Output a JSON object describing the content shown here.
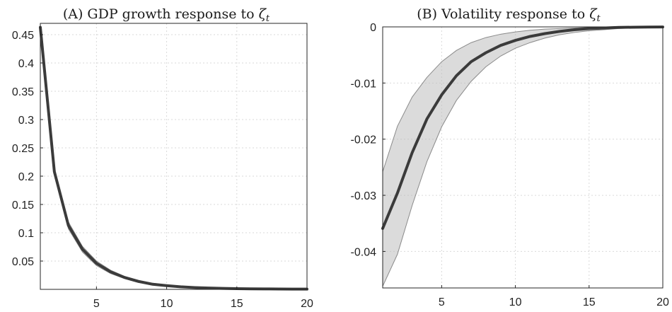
{
  "chart_data": [
    {
      "type": "line",
      "title_prefix": "(A) GDP growth response to ",
      "title_symbol": "ζ",
      "title_subscript": "t",
      "xlabel": "",
      "ylabel": "",
      "xlim": [
        1,
        20
      ],
      "ylim": [
        0,
        0.47
      ],
      "xticks": [
        "5",
        "10",
        "15",
        "20"
      ],
      "xtick_values": [
        5,
        10,
        15,
        20
      ],
      "yticks": [
        "0.05",
        "0.1",
        "0.15",
        "0.2",
        "0.25",
        "0.3",
        "0.35",
        "0.4",
        "0.45"
      ],
      "ytick_values": [
        0.05,
        0.1,
        0.15,
        0.2,
        0.25,
        0.3,
        0.35,
        0.4,
        0.45
      ],
      "grid": true,
      "x": [
        1,
        2,
        3,
        4,
        5,
        6,
        7,
        8,
        9,
        10,
        11,
        12,
        13,
        14,
        15,
        16,
        17,
        18,
        19,
        20
      ],
      "series": [
        {
          "values": [
            0.463,
            0.208,
            0.113,
            0.071,
            0.046,
            0.031,
            0.021,
            0.014,
            0.009,
            0.0065,
            0.0045,
            0.0032,
            0.0023,
            0.0017,
            0.0013,
            0.001,
            0.0008,
            0.0006,
            0.0005,
            0.0004
          ]
        }
      ],
      "band_upper": [
        0.466,
        0.214,
        0.119,
        0.076,
        0.05,
        0.034,
        0.023,
        0.016,
        0.011,
        0.0078,
        0.0055,
        0.004,
        0.0029,
        0.0021,
        0.0016,
        0.0013,
        0.001,
        0.0008,
        0.0006,
        0.0005
      ],
      "band_lower": [
        0.46,
        0.202,
        0.107,
        0.066,
        0.042,
        0.028,
        0.019,
        0.012,
        0.008,
        0.0055,
        0.0038,
        0.0026,
        0.0019,
        0.0014,
        0.001,
        0.0008,
        0.0006,
        0.0005,
        0.0004,
        0.0003
      ]
    },
    {
      "type": "line",
      "title_prefix": "(B) Volatility response to ",
      "title_symbol": "ζ",
      "title_subscript": "t",
      "xlabel": "",
      "ylabel": "",
      "xlim": [
        1,
        20
      ],
      "ylim": [
        -0.0465,
        0
      ],
      "xticks": [
        "5",
        "10",
        "15",
        "20"
      ],
      "xtick_values": [
        5,
        10,
        15,
        20
      ],
      "yticks": [
        "-0.04",
        "-0.03",
        "-0.02",
        "-0.01",
        "0"
      ],
      "ytick_values": [
        -0.04,
        -0.03,
        -0.02,
        -0.01,
        0
      ],
      "grid": true,
      "x": [
        1,
        2,
        3,
        4,
        5,
        6,
        7,
        8,
        9,
        10,
        11,
        12,
        13,
        14,
        15,
        16,
        17,
        18,
        19,
        20
      ],
      "series": [
        {
          "values": [
            -0.0359,
            -0.0296,
            -0.0224,
            -0.0164,
            -0.0121,
            -0.0087,
            -0.0062,
            -0.0046,
            -0.0033,
            -0.0024,
            -0.0017,
            -0.0012,
            -0.0008,
            -0.0005,
            -0.0003,
            -0.0002,
            -0.0001,
            -6e-05,
            -3e-05,
            -1e-05
          ]
        }
      ],
      "band_upper": [
        -0.0258,
        -0.0177,
        -0.0125,
        -0.009,
        -0.0062,
        -0.0042,
        -0.0028,
        -0.0019,
        -0.0013,
        -0.0009,
        -0.0006,
        -0.0004,
        -0.0003,
        -0.0002,
        -0.0001,
        -6e-05,
        -3e-05,
        -2e-05,
        -1e-05,
        0
      ],
      "band_lower": [
        -0.0462,
        -0.0405,
        -0.0318,
        -0.024,
        -0.0178,
        -0.0131,
        -0.0097,
        -0.0071,
        -0.0052,
        -0.0038,
        -0.0028,
        -0.002,
        -0.0014,
        -0.001,
        -0.0007,
        -0.0005,
        -0.0003,
        -0.0002,
        -0.0001,
        -5e-05
      ]
    }
  ]
}
